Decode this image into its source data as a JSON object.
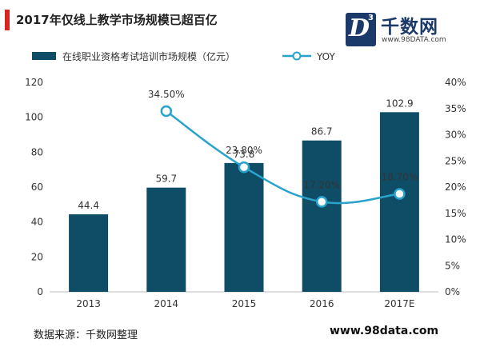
{
  "header": {
    "title": "2017年仅线上教学市场规模已超百亿"
  },
  "logo": {
    "letter": "D",
    "superscript": "3",
    "name": "千数网",
    "url": "www.98DATA.com"
  },
  "footer": {
    "source": "数据来源：千数网整理",
    "url": "www.98data.com"
  },
  "colors": {
    "bar": "#0f4d66",
    "line": "#2aa3cc",
    "accent": "#d7261e"
  },
  "chart_data": {
    "type": "bar",
    "categories": [
      "2013",
      "2014",
      "2015",
      "2016",
      "2017E"
    ],
    "series": [
      {
        "name": "在线职业资格考试培训市场规模（亿元）",
        "type": "bar",
        "axis": "left",
        "values": [
          44.4,
          59.7,
          73.8,
          86.7,
          102.9
        ],
        "labels": [
          "44.4",
          "59.7",
          "73.8",
          "86.7",
          "102.9"
        ]
      },
      {
        "name": "YOY",
        "type": "line",
        "axis": "right",
        "values": [
          null,
          34.5,
          23.8,
          17.2,
          18.7
        ],
        "labels": [
          "",
          "34.50%",
          "23.80%",
          "17.20%",
          "18.70%"
        ]
      }
    ],
    "y_left": {
      "min": 0,
      "max": 120,
      "ticks": [
        "0",
        "20",
        "40",
        "60",
        "80",
        "100",
        "120"
      ]
    },
    "y_right": {
      "min": 0,
      "max": 40,
      "ticks": [
        "0%",
        "5%",
        "10%",
        "15%",
        "20%",
        "25%",
        "30%",
        "35%",
        "40%"
      ]
    },
    "grid": false,
    "legend_position": "top"
  }
}
